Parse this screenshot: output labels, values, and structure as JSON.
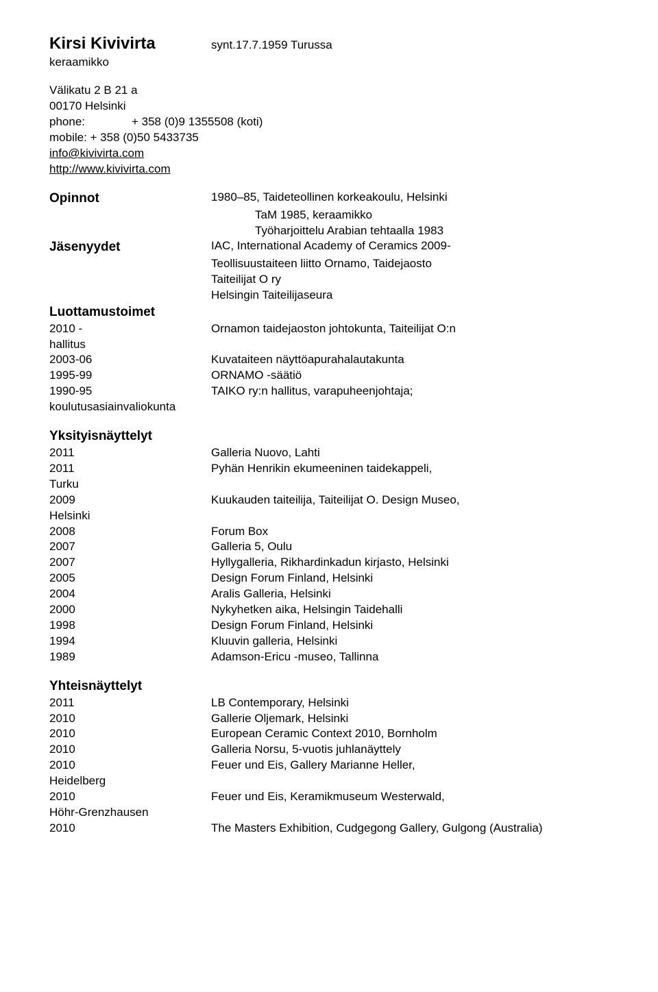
{
  "header": {
    "name": "Kirsi Kivivirta",
    "birth": "synt.17.7.1959 Turussa",
    "occupation": "keraamikko"
  },
  "contact": {
    "address1": "Välikatu 2 B 21 a",
    "address2": "00170 Helsinki",
    "phone_label": "phone:",
    "phone_value": "+ 358 (0)9 1355508 (koti)",
    "mobile": "mobile: + 358 (0)50 5433735",
    "email": "info@kivivirta.com",
    "website": "http://www.kivivirta.com"
  },
  "opinnot": {
    "heading": "Opinnot",
    "line1": "1980–85, Taideteollinen korkeakoulu, Helsinki",
    "line2": "TaM 1985, keraamikko",
    "line3": "Työharjoittelu Arabian tehtaalla 1983"
  },
  "jasenyydet": {
    "heading": "Jäsenyydet",
    "line1": "IAC, International Academy of Ceramics 2009-",
    "line2": "Teollisuustaiteen liitto Ornamo, Taidejaosto",
    "line3": "Taiteilijat O ry",
    "line4": "Helsingin Taiteilijaseura"
  },
  "luottamus": {
    "heading": "Luottamustoimet",
    "rows": [
      {
        "year": "2010 -",
        "text": "Ornamon taidejaoston johtokunta, Taiteilijat O:n"
      },
      {
        "year": "hallitus",
        "text": ""
      },
      {
        "year": "2003-06",
        "text": "Kuvataiteen näyttöapurahalautakunta"
      },
      {
        "year": "1995-99",
        "text": "ORNAMO -säätiö"
      },
      {
        "year": "1990-95",
        "text": "TAIKO ry:n hallitus, varapuheenjohtaja;"
      },
      {
        "year": "koulutusasiainvaliokunta",
        "text": ""
      }
    ]
  },
  "yksityis": {
    "heading": "Yksityisnäyttelyt",
    "rows": [
      {
        "year": "2011",
        "text": "Galleria Nuovo, Lahti"
      },
      {
        "year": "2011",
        "text": "Pyhän Henrikin ekumeeninen taidekappeli,"
      },
      {
        "year": "Turku",
        "text": ""
      },
      {
        "year": "2009",
        "text": "Kuukauden taiteilija, Taiteilijat O. Design Museo,"
      },
      {
        "year": "Helsinki",
        "text": ""
      },
      {
        "year": "2008",
        "text": "Forum Box"
      },
      {
        "year": "2007",
        "text": "Galleria 5, Oulu"
      },
      {
        "year": "2007",
        "text": "Hyllygalleria, Rikhardinkadun kirjasto, Helsinki"
      },
      {
        "year": "2005",
        "text": "Design Forum Finland, Helsinki"
      },
      {
        "year": "2004",
        "text": "Aralis Galleria, Helsinki"
      },
      {
        "year": "2000",
        "text": "Nykyhetken aika, Helsingin Taidehalli"
      },
      {
        "year": "1998",
        "text": "Design Forum Finland, Helsinki"
      },
      {
        "year": "1994",
        "text": "Kluuvin galleria, Helsinki"
      },
      {
        "year": "1989",
        "text": "Adamson-Ericu -museo, Tallinna"
      }
    ]
  },
  "yhteis": {
    "heading": "Yhteisnäyttelyt",
    "rows": [
      {
        "year": "2011",
        "text": "LB Contemporary, Helsinki"
      },
      {
        "year": "2010",
        "text": "Gallerie Oljemark, Helsinki"
      },
      {
        "year": "2010",
        "text": "European Ceramic Context 2010, Bornholm"
      },
      {
        "year": "2010",
        "text": "Galleria Norsu, 5-vuotis juhlanäyttely"
      },
      {
        "year": "2010",
        "text": "Feuer und Eis, Gallery Marianne Heller,"
      },
      {
        "year": "Heidelberg",
        "text": ""
      },
      {
        "year": "2010",
        "text": "Feuer und Eis, Keramikmuseum Westerwald,"
      },
      {
        "year": "Höhr-Grenzhausen",
        "text": ""
      },
      {
        "year": "2010",
        "text": "The Masters Exhibition, Cudgegong Gallery, Gulgong (Australia)"
      }
    ]
  }
}
